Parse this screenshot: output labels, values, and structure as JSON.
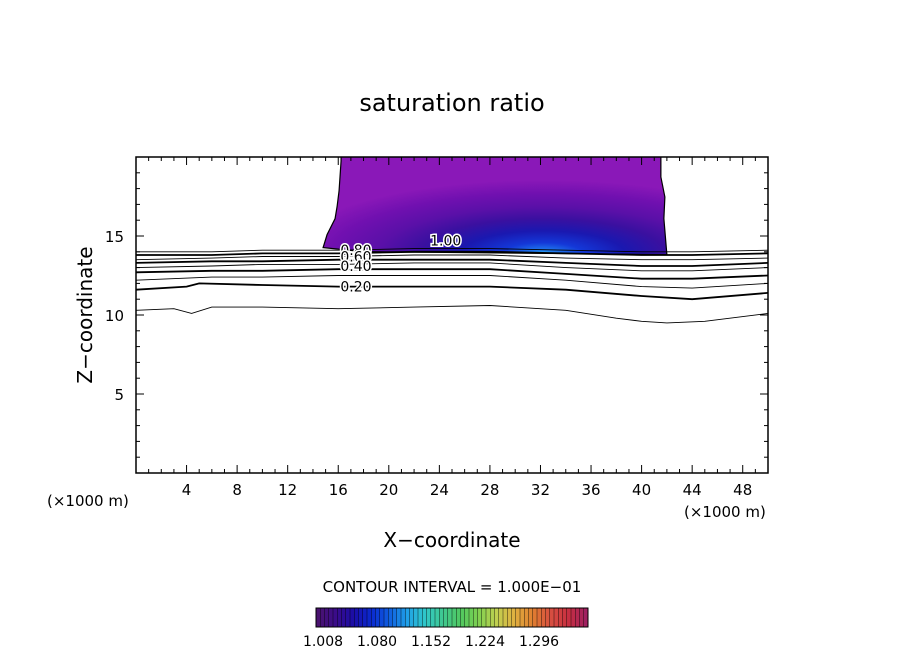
{
  "chart_data": {
    "type": "contour",
    "title": "saturation ratio",
    "xlabel": "X−coordinate",
    "ylabel": "Z−coordinate",
    "x_unit_label": "(×1000 m)",
    "z_unit_label": "(×1000 m)",
    "xlim": [
      0,
      50
    ],
    "ylim": [
      0,
      20
    ],
    "x_ticks": [
      "4",
      "8",
      "12",
      "16",
      "20",
      "24",
      "28",
      "32",
      "36",
      "40",
      "44",
      "48"
    ],
    "y_ticks": [
      "5",
      "10",
      "15"
    ],
    "contour_interval_text": "CONTOUR INTERVAL = 1.000E−01",
    "contour_labels": [
      {
        "text": "1.00",
        "x": 24.5,
        "y": 14.7
      },
      {
        "text": "0.80",
        "x": 17.4,
        "y": 14.1
      },
      {
        "text": "0.60",
        "x": 17.4,
        "y": 13.7
      },
      {
        "text": "0.40",
        "x": 17.4,
        "y": 13.1
      },
      {
        "text": "0.20",
        "x": 17.4,
        "y": 11.8
      }
    ],
    "contour_lines": [
      {
        "level": 0.9,
        "bold": false,
        "points": [
          [
            0,
            14.0
          ],
          [
            6,
            14.0
          ],
          [
            10,
            14.1
          ],
          [
            16,
            14.1
          ],
          [
            22,
            14.2
          ],
          [
            28,
            14.2
          ],
          [
            34,
            14.1
          ],
          [
            40,
            14.0
          ],
          [
            44,
            14.0
          ],
          [
            50,
            14.1
          ]
        ]
      },
      {
        "level": 0.8,
        "bold": true,
        "points": [
          [
            0,
            13.8
          ],
          [
            6,
            13.8
          ],
          [
            10,
            13.9
          ],
          [
            16,
            13.9
          ],
          [
            22,
            14.0
          ],
          [
            28,
            14.0
          ],
          [
            34,
            13.9
          ],
          [
            40,
            13.8
          ],
          [
            44,
            13.8
          ],
          [
            50,
            13.9
          ]
        ]
      },
      {
        "level": 0.7,
        "bold": false,
        "points": [
          [
            0,
            13.5
          ],
          [
            6,
            13.6
          ],
          [
            10,
            13.7
          ],
          [
            16,
            13.7
          ],
          [
            22,
            13.8
          ],
          [
            28,
            13.8
          ],
          [
            34,
            13.6
          ],
          [
            40,
            13.5
          ],
          [
            44,
            13.5
          ],
          [
            50,
            13.6
          ]
        ]
      },
      {
        "level": 0.6,
        "bold": true,
        "points": [
          [
            0,
            13.3
          ],
          [
            6,
            13.4
          ],
          [
            10,
            13.4
          ],
          [
            16,
            13.5
          ],
          [
            22,
            13.5
          ],
          [
            28,
            13.5
          ],
          [
            34,
            13.3
          ],
          [
            40,
            13.1
          ],
          [
            44,
            13.1
          ],
          [
            50,
            13.3
          ]
        ]
      },
      {
        "level": 0.5,
        "bold": false,
        "points": [
          [
            0,
            13.0
          ],
          [
            6,
            13.1
          ],
          [
            10,
            13.2
          ],
          [
            16,
            13.2
          ],
          [
            22,
            13.3
          ],
          [
            28,
            13.3
          ],
          [
            34,
            13.0
          ],
          [
            40,
            12.8
          ],
          [
            44,
            12.8
          ],
          [
            50,
            13.0
          ]
        ]
      },
      {
        "level": 0.4,
        "bold": true,
        "points": [
          [
            0,
            12.7
          ],
          [
            6,
            12.8
          ],
          [
            10,
            12.8
          ],
          [
            16,
            12.9
          ],
          [
            22,
            12.9
          ],
          [
            28,
            12.9
          ],
          [
            34,
            12.6
          ],
          [
            40,
            12.3
          ],
          [
            44,
            12.3
          ],
          [
            50,
            12.5
          ]
        ]
      },
      {
        "level": 0.3,
        "bold": false,
        "points": [
          [
            0,
            12.2
          ],
          [
            6,
            12.4
          ],
          [
            10,
            12.4
          ],
          [
            16,
            12.5
          ],
          [
            22,
            12.5
          ],
          [
            28,
            12.5
          ],
          [
            34,
            12.2
          ],
          [
            40,
            11.8
          ],
          [
            44,
            11.7
          ],
          [
            50,
            12.0
          ]
        ]
      },
      {
        "level": 0.2,
        "bold": true,
        "points": [
          [
            0,
            11.6
          ],
          [
            4,
            11.8
          ],
          [
            5,
            12.0
          ],
          [
            10,
            11.9
          ],
          [
            16,
            11.8
          ],
          [
            22,
            11.8
          ],
          [
            28,
            11.8
          ],
          [
            34,
            11.6
          ],
          [
            40,
            11.2
          ],
          [
            44,
            11.0
          ],
          [
            50,
            11.4
          ]
        ]
      },
      {
        "level": 0.1,
        "bold": false,
        "points": [
          [
            0,
            10.3
          ],
          [
            3,
            10.4
          ],
          [
            4.4,
            10.1
          ],
          [
            6,
            10.5
          ],
          [
            10,
            10.5
          ],
          [
            16,
            10.4
          ],
          [
            22,
            10.5
          ],
          [
            28,
            10.6
          ],
          [
            34,
            10.3
          ],
          [
            38,
            9.8
          ],
          [
            40,
            9.6
          ],
          [
            42,
            9.5
          ],
          [
            45,
            9.6
          ],
          [
            50,
            10.1
          ]
        ]
      }
    ],
    "filled_region": {
      "x_range": [
        14.8,
        42.0
      ],
      "y_range": [
        14.2,
        20.0
      ],
      "min_at": [
        32,
        14.5
      ]
    },
    "colorbar": {
      "tick_labels": [
        "1.008",
        "1.080",
        "1.152",
        "1.224",
        "1.296"
      ],
      "colors": [
        "#4a1270",
        "#3a0c8a",
        "#1a0da8",
        "#0a2ad0",
        "#1060e0",
        "#20a0e8",
        "#30c8c8",
        "#40c890",
        "#50c860",
        "#80d050",
        "#c0d050",
        "#e0b040",
        "#e08030",
        "#d85040",
        "#c83040",
        "#a02060"
      ]
    }
  }
}
